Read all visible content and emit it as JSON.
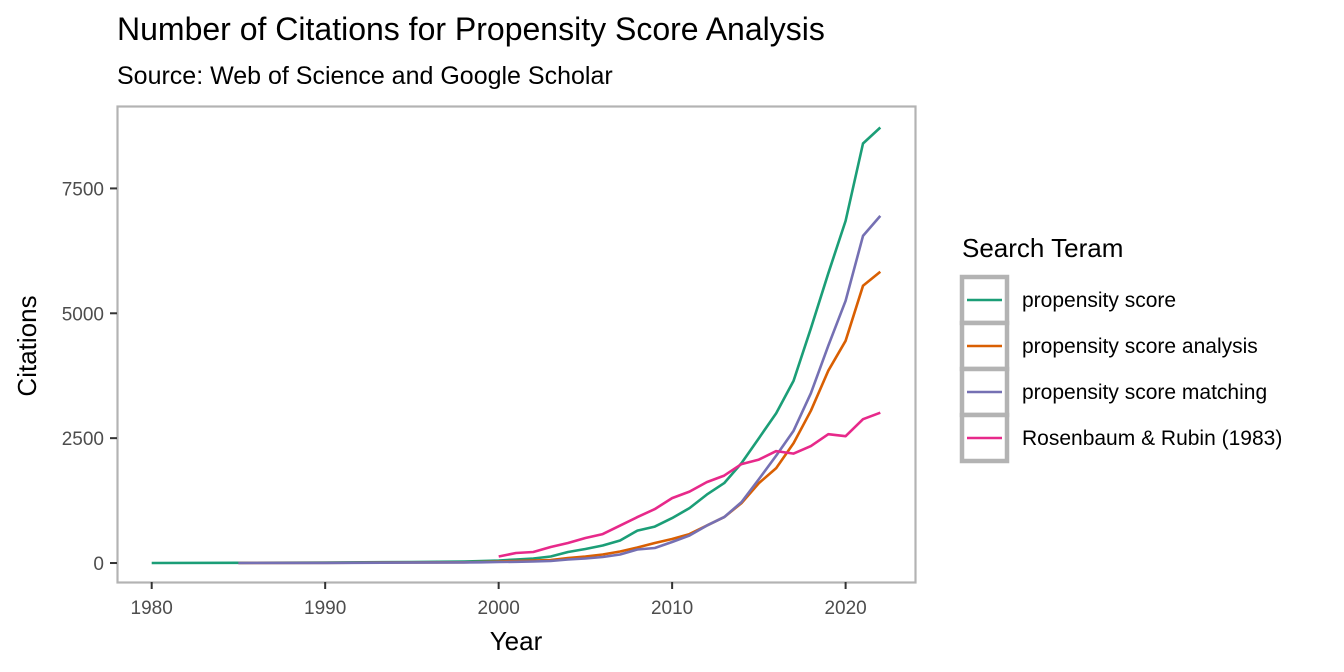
{
  "chart_data": {
    "type": "line",
    "title": "Number of Citations for Propensity Score Analysis",
    "subtitle": "Source: Web of Science and Google Scholar",
    "xlabel": "Year",
    "ylabel": "Citations",
    "xlim": [
      1978,
      2024
    ],
    "ylim": [
      -380,
      9150
    ],
    "x_ticks": [
      1980,
      1990,
      2000,
      2010,
      2020
    ],
    "y_ticks": [
      0,
      2500,
      5000,
      7500
    ],
    "grid": false,
    "legend": {
      "title": "Search Teram",
      "position": "right"
    },
    "series": [
      {
        "name": "propensity score",
        "color": "#1b9e77",
        "x": [
          1980,
          1985,
          1990,
          1995,
          1998,
          1999,
          2000,
          2001,
          2002,
          2003,
          2004,
          2005,
          2006,
          2007,
          2008,
          2009,
          2010,
          2011,
          2012,
          2013,
          2014,
          2015,
          2016,
          2017,
          2018,
          2019,
          2020,
          2021,
          2022
        ],
        "y": [
          0,
          5,
          10,
          20,
          30,
          40,
          50,
          70,
          90,
          130,
          220,
          280,
          350,
          450,
          650,
          730,
          900,
          1100,
          1370,
          1600,
          2000,
          2500,
          3000,
          3650,
          4700,
          5800,
          6850,
          8400,
          8720
        ]
      },
      {
        "name": "propensity score analysis",
        "color": "#d95f02",
        "x": [
          1985,
          1990,
          1995,
          1998,
          1999,
          2000,
          2001,
          2002,
          2003,
          2004,
          2005,
          2006,
          2007,
          2008,
          2009,
          2010,
          2011,
          2012,
          2013,
          2014,
          2015,
          2016,
          2017,
          2018,
          2019,
          2020,
          2021,
          2022
        ],
        "y": [
          0,
          5,
          10,
          15,
          20,
          30,
          40,
          50,
          60,
          100,
          130,
          170,
          230,
          310,
          400,
          480,
          580,
          750,
          920,
          1200,
          1600,
          1900,
          2400,
          3050,
          3850,
          4450,
          5550,
          5830
        ]
      },
      {
        "name": "propensity score matching",
        "color": "#7570b3",
        "x": [
          1985,
          1990,
          1995,
          1998,
          1999,
          2000,
          2001,
          2002,
          2003,
          2004,
          2005,
          2006,
          2007,
          2008,
          2009,
          2010,
          2011,
          2012,
          2013,
          2014,
          2015,
          2016,
          2017,
          2018,
          2019,
          2020,
          2021,
          2022
        ],
        "y": [
          0,
          3,
          8,
          12,
          15,
          20,
          25,
          30,
          40,
          70,
          90,
          120,
          170,
          270,
          300,
          420,
          550,
          750,
          920,
          1220,
          1680,
          2150,
          2650,
          3400,
          4350,
          5250,
          6550,
          6950
        ]
      },
      {
        "name": "Rosenbaum & Rubin (1983)",
        "color": "#e7298a",
        "x": [
          2000,
          2001,
          2002,
          2003,
          2004,
          2005,
          2006,
          2007,
          2008,
          2009,
          2010,
          2011,
          2012,
          2013,
          2014,
          2015,
          2016,
          2017,
          2018,
          2019,
          2020,
          2021,
          2022
        ],
        "y": [
          130,
          200,
          220,
          320,
          400,
          500,
          580,
          750,
          920,
          1080,
          1300,
          1430,
          1620,
          1750,
          1980,
          2070,
          2240,
          2190,
          2340,
          2580,
          2540,
          2880,
          3010
        ]
      }
    ]
  }
}
